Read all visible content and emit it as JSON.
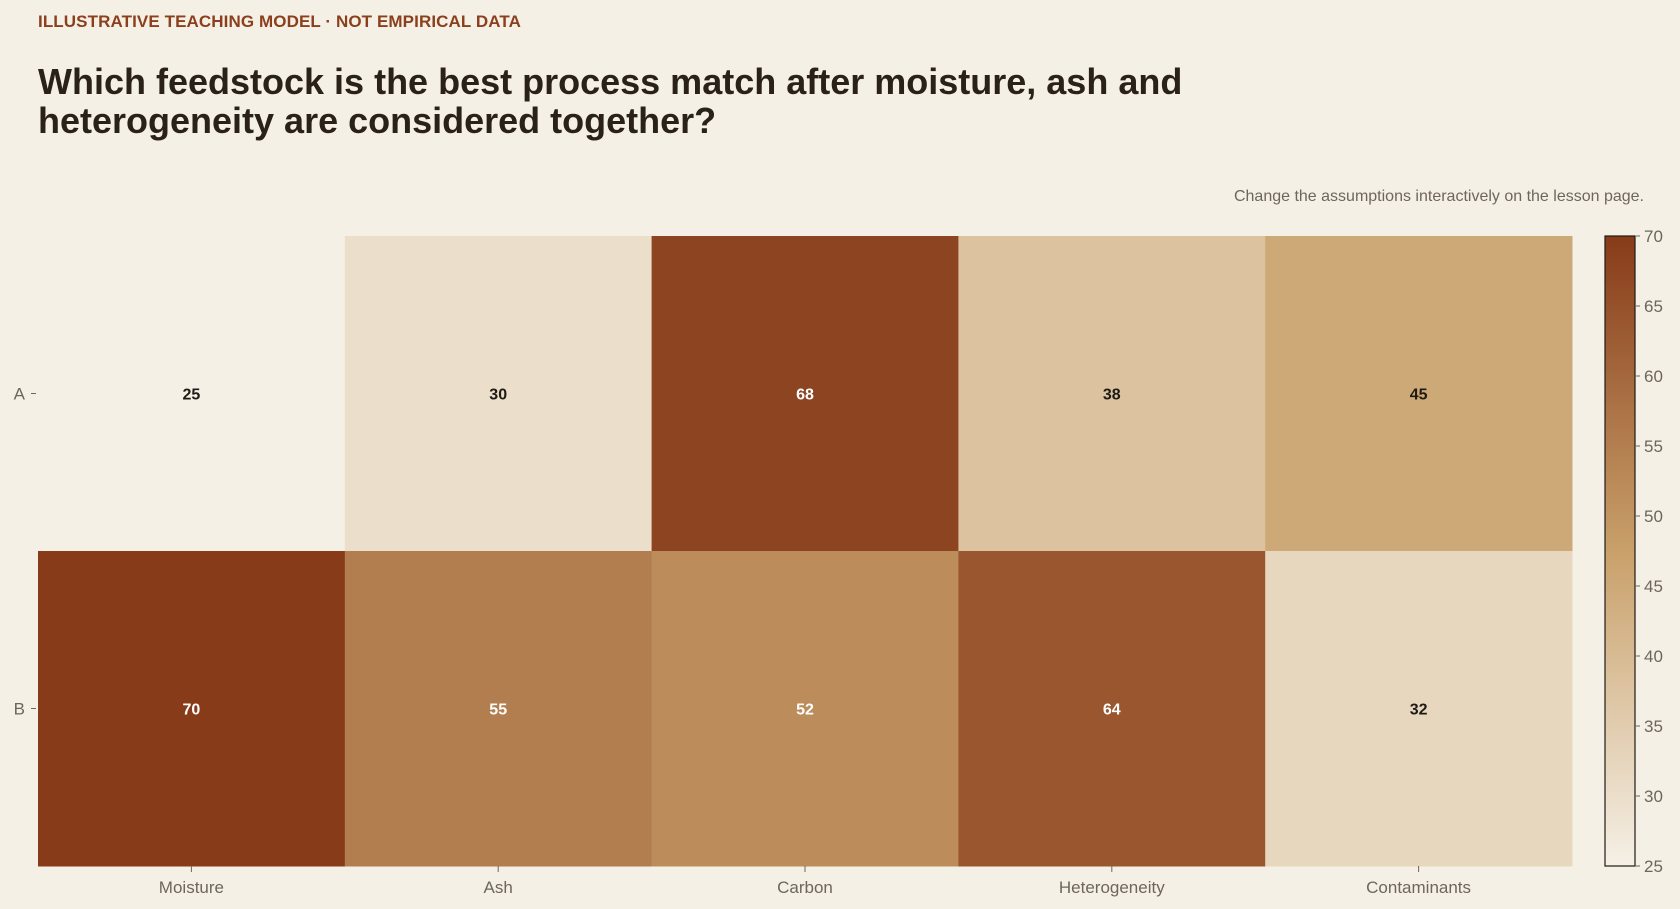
{
  "header": {
    "kicker": "ILLUSTRATIVE TEACHING MODEL · NOT EMPIRICAL DATA",
    "title": "Which feedstock is the best process match after moisture, ash and heterogeneity are considered together?",
    "note": "Change the assumptions interactively on the lesson page."
  },
  "colors": {
    "background": "#f5f0e6",
    "low": "#f5f0e6",
    "mid": "#c9a06a",
    "high": "#873b19",
    "kicker": "#8b3f1c"
  },
  "chart_data": {
    "type": "heatmap",
    "title": "",
    "xlabel": "",
    "ylabel": "",
    "x_categories": [
      "Moisture",
      "Ash",
      "Carbon",
      "Heterogeneity",
      "Contaminants"
    ],
    "y_categories": [
      "A",
      "B"
    ],
    "values": [
      [
        25,
        30,
        68,
        38,
        45
      ],
      [
        70,
        55,
        52,
        64,
        32
      ]
    ],
    "colorscale_range": [
      25,
      70
    ],
    "colorbar_ticks": [
      25,
      30,
      35,
      40,
      45,
      50,
      55,
      60,
      65,
      70
    ],
    "colorbar_position": "right",
    "grid": false
  }
}
